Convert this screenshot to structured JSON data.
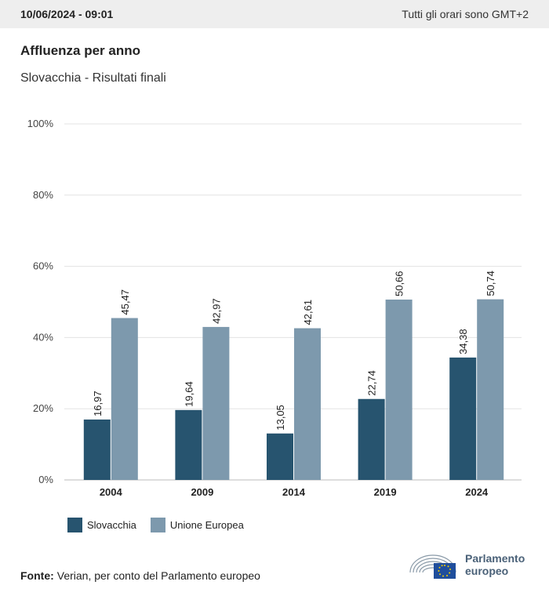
{
  "header": {
    "timestamp": "10/06/2024 - 09:01",
    "timezone_note": "Tutti gli orari sono GMT+2"
  },
  "title": "Affluenza per anno",
  "subtitle": "Slovacchia - Risultati finali",
  "chart_data": {
    "type": "bar",
    "categories": [
      "2004",
      "2009",
      "2014",
      "2019",
      "2024"
    ],
    "series": [
      {
        "name": "Slovacchia",
        "color": "#27546f",
        "values": [
          16.97,
          19.64,
          13.05,
          22.74,
          34.38
        ]
      },
      {
        "name": "Unione Europea",
        "color": "#7d99ad",
        "values": [
          45.47,
          42.97,
          42.61,
          50.66,
          50.74
        ]
      }
    ],
    "ylim": [
      0,
      100
    ],
    "yticks": [
      0,
      20,
      40,
      60,
      80,
      100
    ],
    "ytick_labels": [
      "0%",
      "20%",
      "40%",
      "60%",
      "80%",
      "100%"
    ],
    "grid": true,
    "legend": "bottom-left"
  },
  "legend": {
    "items": [
      {
        "label": "Slovacchia",
        "color": "#27546f"
      },
      {
        "label": "Unione Europea",
        "color": "#7d99ad"
      }
    ]
  },
  "source": {
    "label": "Fonte:",
    "text": "Verian, per conto del Parlamento europeo"
  },
  "logo": {
    "line1": "Parlamento",
    "line2": "europeo"
  }
}
